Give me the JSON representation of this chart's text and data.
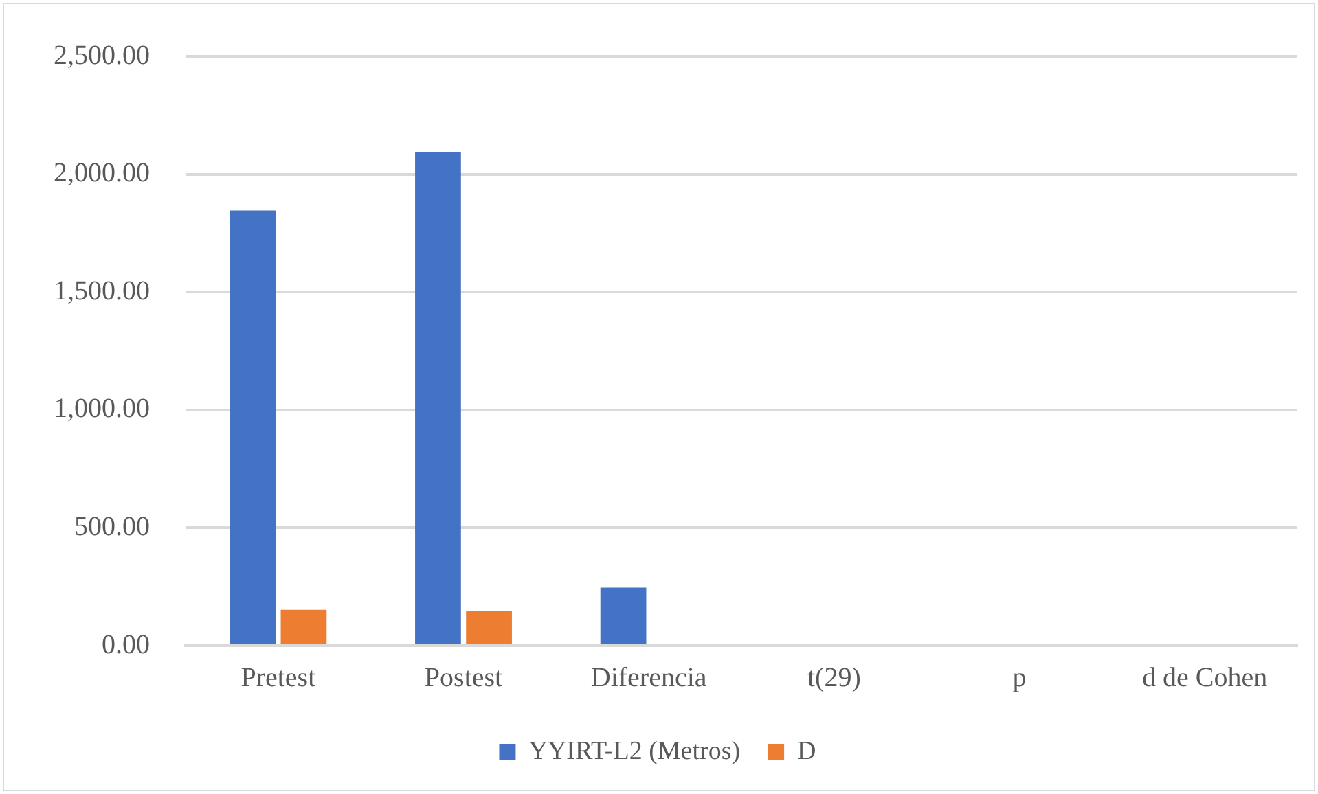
{
  "chart_data": {
    "type": "bar",
    "categories": [
      "Pretest",
      "Postest",
      "Diferencia",
      "t(29)",
      "p",
      "d de Cohen"
    ],
    "series": [
      {
        "name": "YYIRT-L2 (Metros)",
        "color": "#4472c4",
        "values": [
          1846,
          2094,
          246,
          8,
          0,
          0
        ]
      },
      {
        "name": "D",
        "color": "#ed7d31",
        "values": [
          152,
          146,
          0,
          0,
          0,
          0
        ]
      }
    ],
    "ylim": [
      0,
      2500
    ],
    "yticks": [
      {
        "value": 0,
        "label": "0.00"
      },
      {
        "value": 500,
        "label": "500.00"
      },
      {
        "value": 1000,
        "label": "1,000.00"
      },
      {
        "value": 1500,
        "label": "1,500.00"
      },
      {
        "value": 2000,
        "label": "2,000.00"
      },
      {
        "value": 2500,
        "label": "2,500.00"
      }
    ],
    "grid": "y",
    "legend": "bottom"
  }
}
